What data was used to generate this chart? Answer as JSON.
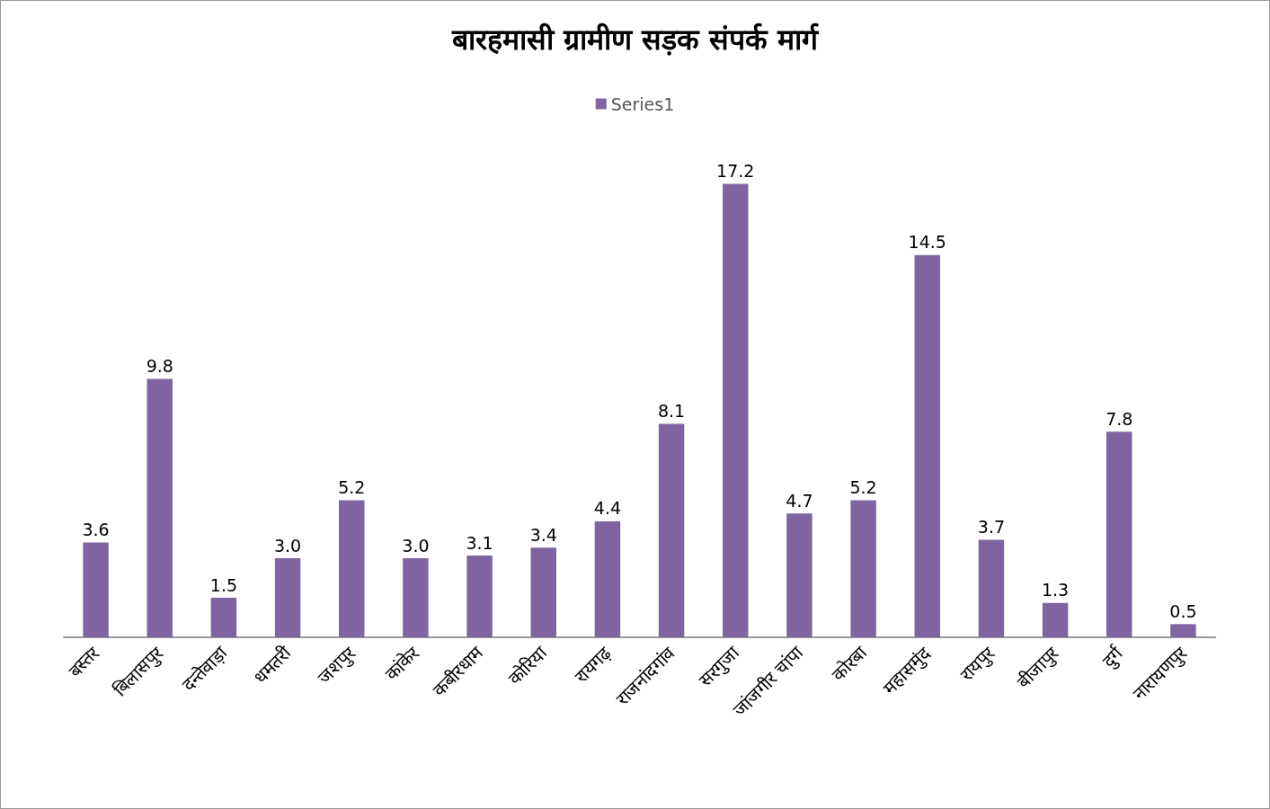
{
  "chart_data": {
    "type": "bar",
    "title": "बारहमासी ग्रामीण सड़क संपर्क मार्ग",
    "categories": [
      "बस्तर",
      "बिलासपुर",
      "दन्तेवाड़ा",
      "धमतरी",
      "जशपुर",
      "कांकेर",
      "कबीरधाम",
      "कोरिया",
      "रायगढ़",
      "राजनांदगांव",
      "सरगुजा",
      "जांजगीर चांपा",
      "कोरबा",
      "महासमुंद",
      "रायपुर",
      "बीजापुर",
      "दुर्ग",
      "नारायणपुर"
    ],
    "series": [
      {
        "name": "Series1",
        "color": "#8064a2",
        "values": [
          3.6,
          9.8,
          1.5,
          3.0,
          5.2,
          3.0,
          3.1,
          3.4,
          4.4,
          8.1,
          17.2,
          4.7,
          5.2,
          14.5,
          3.7,
          1.3,
          7.8,
          0.5
        ],
        "value_labels": [
          "3.6",
          "9.8",
          "1.5",
          "3.0",
          "5.2",
          "3.0",
          "3.1",
          "3.4",
          "4.4",
          "8.1",
          "17.2",
          "4.7",
          "5.2",
          "14.5",
          "3.7",
          "1.3",
          "7.8",
          "0.5"
        ]
      }
    ],
    "legend": "top",
    "grid": false,
    "tick_labels": "x"
  }
}
